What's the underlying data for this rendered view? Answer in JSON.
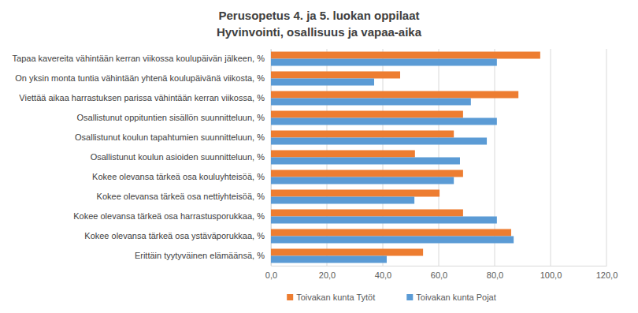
{
  "chart_data": {
    "type": "bar",
    "orientation": "horizontal",
    "title": "Perusopetus 4. ja 5. luokan oppilaat",
    "subtitle": "Hyvinvointi, osallisuus ja vapaa-aika",
    "categories": [
      "Tapaa kavereita vähintään kerran viikossa koulupäivän jälkeen, %",
      "On yksin monta tuntia vähintään yhtenä koulupäivänä viikosta, %",
      "Viettää aikaa harrastuksen parissa vähintään kerran viikossa, %",
      "Osallistunut oppituntien sisällön suunnitteluun, %",
      "Osallistunut koulun tapahtumien suunnitteluun, %",
      "Osallistunut koulun asioiden suunnitteluun, %",
      "Kokee olevansa tärkeä osa kouluyhteisöä, %",
      "Kokee olevansa tärkeä osa nettiyhteisöä, %",
      "Kokee olevansa tärkeä osa harrastusporukkaa, %",
      "Kokee olevansa tärkeä osa ystäväporukkaa, %",
      "Erittäin tyytyväinen elämäänsä, %"
    ],
    "series": [
      {
        "name": "Toivakan kunta Tytöt",
        "color": "#ed7d31",
        "values": [
          96.3,
          46.2,
          88.5,
          68.7,
          65.4,
          51.5,
          68.7,
          60.3,
          68.7,
          85.9,
          54.4
        ]
      },
      {
        "name": "Toivakan kunta Pojat",
        "color": "#5b9bd5",
        "values": [
          80.8,
          36.9,
          71.5,
          80.8,
          77.2,
          67.6,
          65.4,
          51.3,
          80.8,
          86.8,
          41.4
        ]
      }
    ],
    "xlim": [
      0,
      120
    ],
    "xticks": [
      {
        "value": 0,
        "label": "0,0"
      },
      {
        "value": 20,
        "label": "20,0"
      },
      {
        "value": 40,
        "label": "40,0"
      },
      {
        "value": 60,
        "label": "60,0"
      },
      {
        "value": 80,
        "label": "80,0"
      },
      {
        "value": 100,
        "label": "100,0"
      },
      {
        "value": 120,
        "label": "120,0"
      }
    ],
    "grid": true,
    "legend": "bottom"
  }
}
